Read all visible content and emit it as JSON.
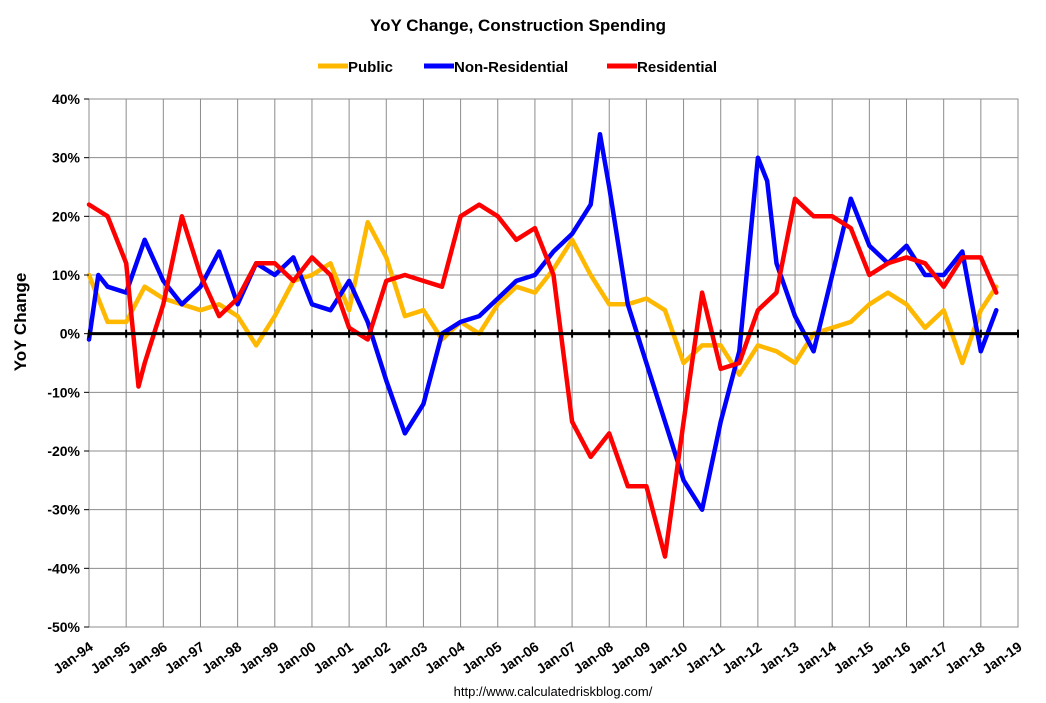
{
  "chart_data": {
    "type": "line",
    "title": "YoY Change,  Construction Spending",
    "ylabel": "YoY Change",
    "xlabel": "",
    "source": "http://www.calculatedriskblog.com/",
    "ylim": [
      -0.5,
      0.4
    ],
    "y_ticks": [
      "40%",
      "30%",
      "20%",
      "10%",
      "0%",
      "-10%",
      "-20%",
      "-30%",
      "-40%",
      "-50%"
    ],
    "x_range": [
      "1994-01",
      "2019-01"
    ],
    "x_ticks": [
      "Jan-94",
      "Jan-95",
      "Jan-96",
      "Jan-97",
      "Jan-98",
      "Jan-99",
      "Jan-00",
      "Jan-01",
      "Jan-02",
      "Jan-03",
      "Jan-04",
      "Jan-05",
      "Jan-06",
      "Jan-07",
      "Jan-08",
      "Jan-09",
      "Jan-10",
      "Jan-11",
      "Jan-12",
      "Jan-13",
      "Jan-14",
      "Jan-15",
      "Jan-16",
      "Jan-17",
      "Jan-18",
      "Jan-19"
    ],
    "grid": true,
    "legend_position": "top-center",
    "series": [
      {
        "name": "Public",
        "color": "#FFB800",
        "x": [
          "1994-01",
          "1994-07",
          "1995-01",
          "1995-07",
          "1996-01",
          "1996-07",
          "1997-01",
          "1997-07",
          "1998-01",
          "1998-07",
          "1999-01",
          "1999-07",
          "2000-01",
          "2000-07",
          "2001-01",
          "2001-07",
          "2002-01",
          "2002-07",
          "2003-01",
          "2003-07",
          "2004-01",
          "2004-07",
          "2005-01",
          "2005-07",
          "2006-01",
          "2006-07",
          "2007-01",
          "2007-07",
          "2008-01",
          "2008-07",
          "2009-01",
          "2009-07",
          "2010-01",
          "2010-07",
          "2011-01",
          "2011-07",
          "2012-01",
          "2012-07",
          "2013-01",
          "2013-07",
          "2014-01",
          "2014-07",
          "2015-01",
          "2015-07",
          "2016-01",
          "2016-07",
          "2017-01",
          "2017-07",
          "2018-01",
          "2018-06"
        ],
        "values": [
          0.1,
          0.02,
          0.02,
          0.08,
          0.06,
          0.05,
          0.04,
          0.05,
          0.03,
          -0.02,
          0.03,
          0.09,
          0.1,
          0.12,
          0.04,
          0.19,
          0.13,
          0.03,
          0.04,
          -0.01,
          0.02,
          0.0,
          0.05,
          0.08,
          0.07,
          0.11,
          0.16,
          0.1,
          0.05,
          0.05,
          0.06,
          0.04,
          -0.05,
          -0.02,
          -0.02,
          -0.07,
          -0.02,
          -0.03,
          -0.05,
          0.0,
          0.01,
          0.02,
          0.05,
          0.07,
          0.05,
          0.01,
          0.04,
          -0.05,
          0.04,
          0.08
        ]
      },
      {
        "name": "Non-Residential",
        "color": "#0000FF",
        "x": [
          "1994-01",
          "1994-04",
          "1994-07",
          "1995-01",
          "1995-07",
          "1996-01",
          "1996-07",
          "1997-01",
          "1997-07",
          "1998-01",
          "1998-07",
          "1999-01",
          "1999-07",
          "2000-01",
          "2000-07",
          "2001-01",
          "2001-07",
          "2002-01",
          "2002-07",
          "2003-01",
          "2003-07",
          "2004-01",
          "2004-07",
          "2005-01",
          "2005-07",
          "2006-01",
          "2006-07",
          "2007-01",
          "2007-07",
          "2007-10",
          "2008-01",
          "2008-07",
          "2009-01",
          "2009-07",
          "2010-01",
          "2010-07",
          "2011-01",
          "2011-07",
          "2012-01",
          "2012-04",
          "2012-07",
          "2013-01",
          "2013-07",
          "2014-01",
          "2014-07",
          "2015-01",
          "2015-07",
          "2016-01",
          "2016-07",
          "2017-01",
          "2017-07",
          "2018-01",
          "2018-06"
        ],
        "values": [
          -0.01,
          0.1,
          0.08,
          0.07,
          0.16,
          0.09,
          0.05,
          0.08,
          0.14,
          0.05,
          0.12,
          0.1,
          0.13,
          0.05,
          0.04,
          0.09,
          0.02,
          -0.08,
          -0.17,
          -0.12,
          0.0,
          0.02,
          0.03,
          0.06,
          0.09,
          0.1,
          0.14,
          0.17,
          0.22,
          0.34,
          0.25,
          0.05,
          -0.05,
          -0.15,
          -0.25,
          -0.3,
          -0.15,
          -0.03,
          0.3,
          0.26,
          0.12,
          0.03,
          -0.03,
          0.1,
          0.23,
          0.15,
          0.12,
          0.15,
          0.1,
          0.1,
          0.14,
          -0.03,
          0.04
        ]
      },
      {
        "name": "Residential",
        "color": "#FF0000",
        "x": [
          "1994-01",
          "1994-07",
          "1995-01",
          "1995-05",
          "1995-07",
          "1996-01",
          "1996-07",
          "1997-01",
          "1997-07",
          "1998-01",
          "1998-07",
          "1999-01",
          "1999-07",
          "2000-01",
          "2000-07",
          "2001-01",
          "2001-07",
          "2002-01",
          "2002-07",
          "2003-01",
          "2003-07",
          "2004-01",
          "2004-07",
          "2005-01",
          "2005-07",
          "2006-01",
          "2006-07",
          "2007-01",
          "2007-07",
          "2008-01",
          "2008-07",
          "2009-01",
          "2009-07",
          "2010-01",
          "2010-07",
          "2011-01",
          "2011-07",
          "2012-01",
          "2012-07",
          "2013-01",
          "2013-07",
          "2014-01",
          "2014-07",
          "2015-01",
          "2015-07",
          "2016-01",
          "2016-07",
          "2017-01",
          "2017-07",
          "2018-01",
          "2018-06"
        ],
        "values": [
          0.22,
          0.2,
          0.12,
          -0.09,
          -0.05,
          0.05,
          0.2,
          0.1,
          0.03,
          0.06,
          0.12,
          0.12,
          0.09,
          0.13,
          0.1,
          0.01,
          -0.01,
          0.09,
          0.1,
          0.09,
          0.08,
          0.2,
          0.22,
          0.2,
          0.16,
          0.18,
          0.1,
          -0.15,
          -0.21,
          -0.17,
          -0.26,
          -0.26,
          -0.38,
          -0.15,
          0.07,
          -0.06,
          -0.05,
          0.04,
          0.07,
          0.23,
          0.2,
          0.2,
          0.18,
          0.1,
          0.12,
          0.13,
          0.12,
          0.08,
          0.13,
          0.13,
          0.07
        ]
      }
    ]
  }
}
